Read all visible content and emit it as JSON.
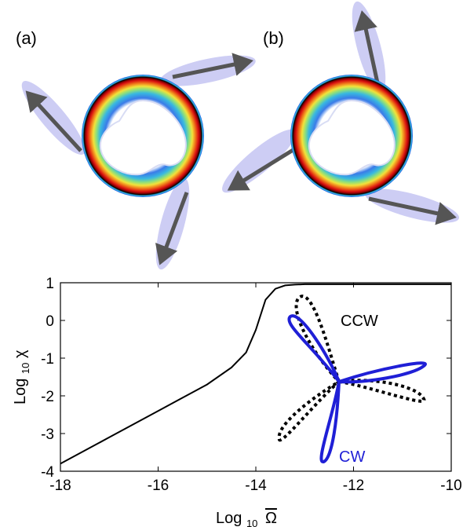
{
  "panels": {
    "a": {
      "label": "(a)"
    },
    "b": {
      "label": "(b)"
    }
  },
  "colors": {
    "curve": "#000000",
    "cw": "#1f1fd6",
    "ccw": "#000000",
    "arrow": "#5a5a5a",
    "halo": "#b8b8f0"
  },
  "chart_data": {
    "type": "line",
    "title": "",
    "xlabel_base": "Log",
    "xlabel_sub": "10",
    "xlabel_symbol": "Ω",
    "ylabel_base": "Log",
    "ylabel_sub": "10",
    "ylabel_symbol": "χ",
    "xlim": [
      -18,
      -10
    ],
    "ylim": [
      -4,
      1
    ],
    "x_ticks": [
      "-18",
      "-16",
      "-14",
      "-12",
      "-10"
    ],
    "y_ticks": [
      "-4",
      "-3",
      "-2",
      "-1",
      "0",
      "1"
    ],
    "x_tick_values": [
      -18,
      -16,
      -14,
      -12,
      -10
    ],
    "y_tick_values": [
      -4,
      -3,
      -2,
      -1,
      0,
      1
    ],
    "series": [
      {
        "x": [
          -18,
          -17,
          -16,
          -15,
          -14.5,
          -14.2,
          -14,
          -13.8,
          -13.6,
          -13.4,
          -13.2,
          -13,
          -12.5,
          -12,
          -11,
          -10
        ],
        "y": [
          -3.8,
          -3.1,
          -2.4,
          -1.7,
          -1.25,
          -0.85,
          -0.25,
          0.55,
          0.84,
          0.93,
          0.95,
          0.96,
          0.96,
          0.96,
          0.96,
          0.96
        ]
      }
    ],
    "annotations": {
      "ccw": "CCW",
      "cw": "CW"
    }
  }
}
